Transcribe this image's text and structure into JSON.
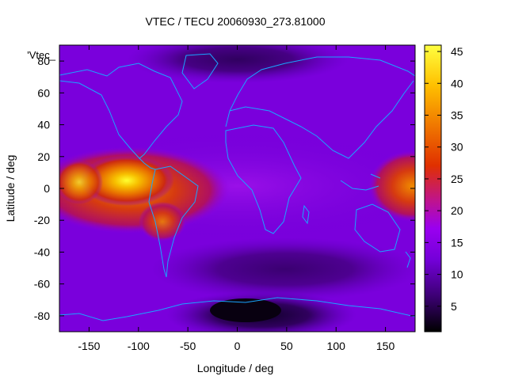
{
  "chart_data": {
    "type": "heatmap",
    "title": "VTEC / TECU 20060930_273.81000",
    "xlabel": "Longitude / deg",
    "ylabel": "Latitude / deg",
    "legend_label": "'Vtec_",
    "xlim": [
      -180,
      180
    ],
    "ylim": [
      -90,
      90
    ],
    "x_ticks": [
      -150,
      -100,
      -50,
      0,
      50,
      100,
      150
    ],
    "y_ticks": [
      -80,
      -60,
      -40,
      -20,
      0,
      20,
      40,
      60,
      80
    ],
    "colorbar": {
      "range": [
        1,
        46
      ],
      "ticks": [
        5,
        10,
        15,
        20,
        25,
        30,
        35,
        40,
        45
      ],
      "palette": [
        "#000000",
        "#3a0070",
        "#7300d8",
        "#9a00f0",
        "#c0148a",
        "#e03000",
        "#f07800",
        "#ffc000",
        "#ffff40"
      ]
    },
    "grid": false,
    "coastline_color": "#1aa6ff",
    "features": [
      {
        "desc": "equatorial anomaly crest west",
        "lon": -120,
        "lat": 5,
        "value": 44
      },
      {
        "desc": "band over eastern Pacific",
        "lon_range": [
          -180,
          -55
        ],
        "lat_range": [
          -20,
          25
        ],
        "value": 30
      },
      {
        "desc": "band over western Pacific",
        "lon_range": [
          140,
          180
        ],
        "lat_range": [
          -20,
          25
        ],
        "value": 27
      },
      {
        "desc": "mid-latitude background",
        "value": 12
      },
      {
        "desc": "southern polar minimum",
        "lon": 0,
        "lat": -78,
        "value": 2
      }
    ]
  }
}
